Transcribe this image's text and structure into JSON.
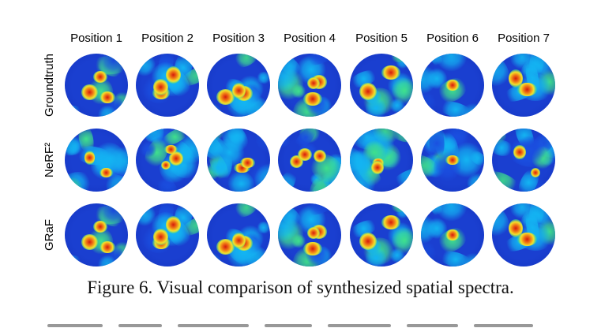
{
  "figure": {
    "columns": [
      "Position 1",
      "Position 2",
      "Position 3",
      "Position 4",
      "Position 5",
      "Position 6",
      "Position 7"
    ],
    "rows": [
      "Groundtruth",
      "NeRF²",
      "GRaF"
    ],
    "caption": "Figure 6. Visual comparison of synthesized spatial spectra.",
    "colormap": [
      "#0a1fa0",
      "#1a4fe0",
      "#13b4f2",
      "#3fe08c",
      "#f2e22a",
      "#f07a16",
      "#d41a0c"
    ]
  }
}
